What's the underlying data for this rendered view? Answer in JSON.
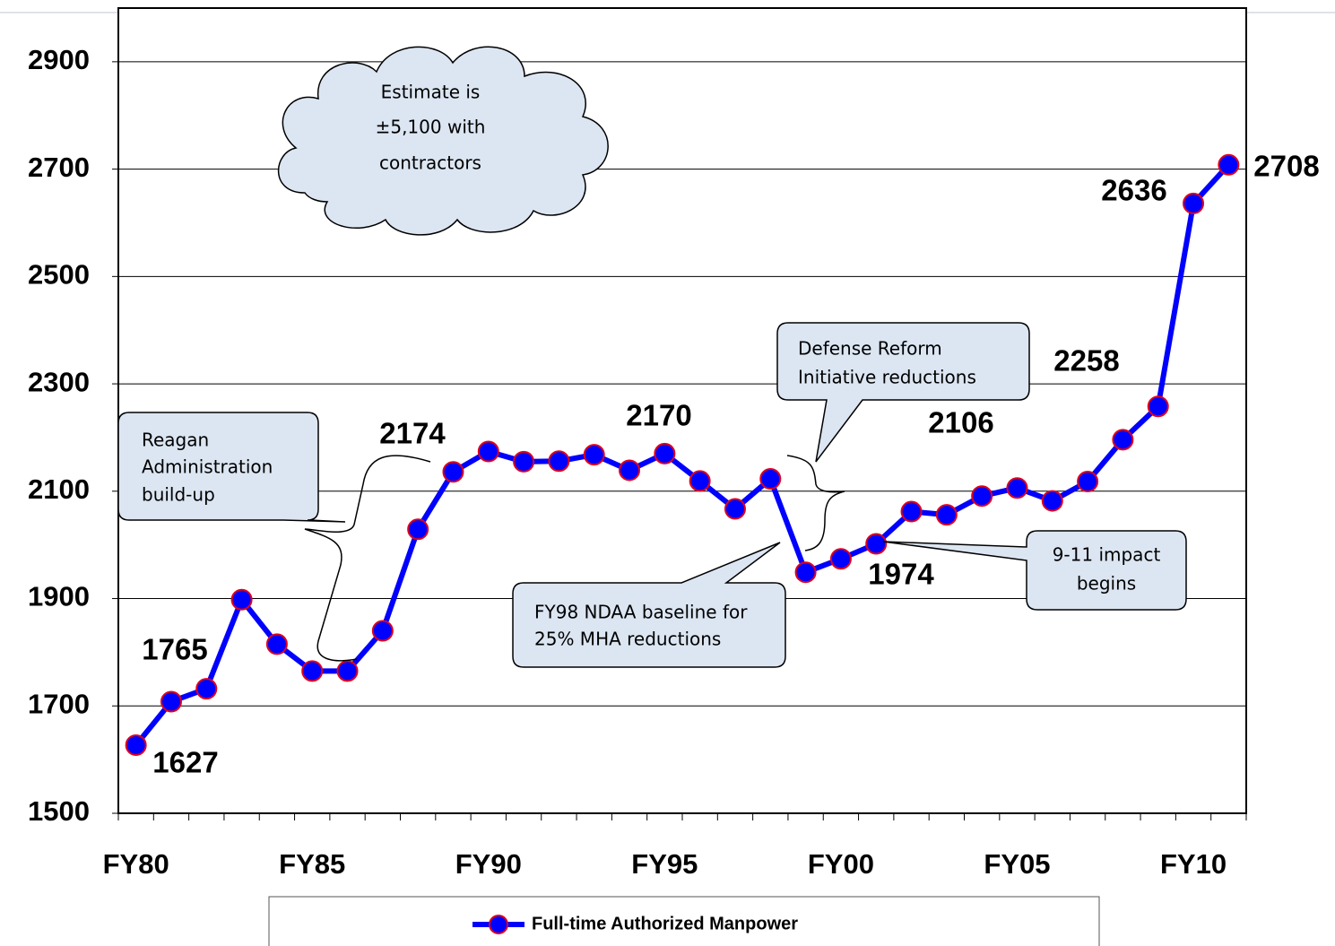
{
  "chart_data": {
    "type": "line",
    "categories": [
      "FY80",
      null,
      null,
      null,
      null,
      "FY85",
      null,
      null,
      null,
      null,
      "FY90",
      null,
      null,
      null,
      null,
      "FY95",
      null,
      null,
      null,
      null,
      "FY00",
      null,
      null,
      null,
      null,
      "FY05",
      null,
      null,
      null,
      null,
      "FY10",
      null
    ],
    "series": [
      {
        "name": "Full-time Authorized Manpower",
        "color": "#0000ff",
        "marker_edge": "#e0001b",
        "values": [
          1627,
          1708,
          1732,
          1898,
          1815,
          1765,
          1765,
          1840,
          2029,
          2136,
          2174,
          2155,
          2156,
          2168,
          2139,
          2170,
          2119,
          2067,
          2123,
          1949,
          1974,
          2002,
          2062,
          2056,
          2091,
          2106,
          2082,
          2118,
          2196,
          2258,
          2636,
          2708
        ]
      }
    ],
    "ylim": [
      1500,
      3000
    ],
    "yticks": [
      1500,
      1700,
      1900,
      2100,
      2300,
      2500,
      2700,
      2900
    ],
    "grid": true,
    "annotations": [
      "1627",
      "1765",
      "2174",
      "2170",
      "2106",
      "1974",
      "2258",
      "2636",
      "2708"
    ],
    "callouts": [
      {
        "lines": [
          "Estimate is",
          "±5,100 with",
          "contractors"
        ]
      },
      {
        "lines": [
          "Reagan",
          "Administration",
          "build-up"
        ]
      },
      {
        "lines": [
          "Defense Reform",
          "Initiative reductions"
        ]
      },
      {
        "lines": [
          "FY98 NDAA baseline for",
          "25% MHA reductions"
        ]
      },
      {
        "lines": [
          "9-11 impact",
          "begins"
        ]
      }
    ],
    "legend": "bottom"
  }
}
